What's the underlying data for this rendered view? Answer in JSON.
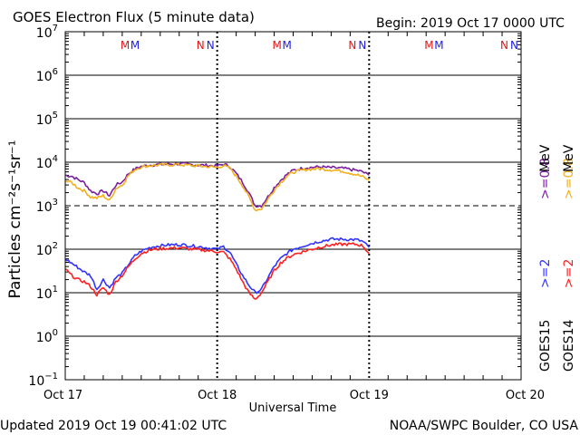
{
  "header": {
    "title": "GOES Electron Flux (5 minute data)",
    "begin": "Begin: 2019 Oct 17 0000 UTC"
  },
  "footer": {
    "updated": "Updated 2019 Oct 19 00:41:02 UTC",
    "source": "NOAA/SWPC Boulder, CO USA"
  },
  "colors": {
    "goes15_2mev": "#3333ff",
    "goes15_08mev": "#7a1fa0",
    "goes14_2mev": "#ff2020",
    "goes14_08mev": "#f0b020",
    "grid": "#000000"
  },
  "chart_data": {
    "type": "line",
    "title": "GOES Electron Flux (5 minute data)",
    "xlabel": "Universal Time",
    "ylabel": "Particles cm⁻²s⁻¹sr⁻¹",
    "yscale": "log",
    "ylim": [
      0.1,
      10000000
    ],
    "xlim": [
      0,
      72
    ],
    "x_unit": "hours since 2019 Oct 17 0000 UTC",
    "x_ticks": [
      {
        "value": 0,
        "label": "Oct 17"
      },
      {
        "value": 24,
        "label": "Oct 18"
      },
      {
        "value": 48,
        "label": "Oct 19"
      },
      {
        "value": 72,
        "label": "Oct 20"
      }
    ],
    "y_ticks": [
      {
        "value": 0.1,
        "base": "10",
        "exp": "−1"
      },
      {
        "value": 1,
        "base": "10",
        "exp": "0"
      },
      {
        "value": 10,
        "base": "10",
        "exp": "1"
      },
      {
        "value": 100,
        "base": "10",
        "exp": "2"
      },
      {
        "value": 1000,
        "base": "10",
        "exp": "3"
      },
      {
        "value": 10000,
        "base": "10",
        "exp": "4"
      },
      {
        "value": 100000,
        "base": "10",
        "exp": "5"
      },
      {
        "value": 1000000,
        "base": "10",
        "exp": "6"
      },
      {
        "value": 10000000,
        "base": "10",
        "exp": "7"
      }
    ],
    "threshold": {
      "value": 1000,
      "style": "dashed"
    },
    "day_markers": [
      {
        "day": "Oct 17",
        "m_hour": 10.0,
        "n_hour": 22.0
      },
      {
        "day": "Oct 18",
        "m_hour": 34.0,
        "n_hour": 46.0
      },
      {
        "day": "Oct 19",
        "m_hour": 58.0,
        "n_hour": 70.0
      }
    ],
    "marker_labels": {
      "m": "M",
      "n": "N"
    },
    "legend": {
      "placement": "right, vertical",
      "goes15": {
        "sat": "GOES15",
        "e2": ">=2",
        "e08": ">=0.8",
        "unit": "MeV"
      },
      "goes14": {
        "sat": "GOES14",
        "e2": ">=2",
        "e08": ">=0.8",
        "unit": "MeV"
      }
    },
    "series": [
      {
        "name": "GOES15 >=0.8 MeV",
        "color": "#7a1fa0",
        "x": [
          0,
          1,
          2,
          3,
          4,
          5,
          6,
          7,
          8,
          9,
          10,
          11,
          12,
          13,
          14,
          16,
          18,
          20,
          22,
          24,
          25,
          26,
          27,
          28,
          29,
          30,
          31,
          32,
          33,
          34,
          35,
          36,
          38,
          40,
          42,
          44,
          46,
          47,
          48
        ],
        "y": [
          5000,
          4800,
          4000,
          3400,
          2200,
          1900,
          2200,
          1700,
          3000,
          3500,
          5500,
          7000,
          8000,
          8500,
          8700,
          9000,
          9200,
          8800,
          8500,
          8200,
          9000,
          8000,
          5500,
          3500,
          2000,
          1000,
          1000,
          1600,
          2600,
          3800,
          5200,
          6500,
          7500,
          7800,
          7500,
          7200,
          6500,
          6000,
          5000
        ]
      },
      {
        "name": "GOES14 >=0.8 MeV",
        "color": "#f0b020",
        "x": [
          0,
          1,
          2,
          3,
          4,
          5,
          6,
          7,
          8,
          9,
          10,
          11,
          12,
          13,
          14,
          16,
          18,
          20,
          22,
          24,
          25,
          26,
          27,
          28,
          29,
          30,
          31,
          32,
          33,
          34,
          35,
          36,
          38,
          40,
          42,
          44,
          46,
          47,
          48
        ],
        "y": [
          3800,
          3400,
          2600,
          2200,
          1600,
          1500,
          1700,
          1300,
          2500,
          3000,
          5000,
          6800,
          7800,
          8300,
          8500,
          8700,
          8800,
          8400,
          8000,
          7600,
          8400,
          7200,
          4800,
          2900,
          1600,
          800,
          850,
          1400,
          2300,
          3400,
          4700,
          5900,
          6800,
          7100,
          6700,
          6200,
          5200,
          4600,
          3800
        ]
      },
      {
        "name": "GOES15 >=2 MeV",
        "color": "#3333ff",
        "x": [
          0,
          1,
          2,
          3,
          4,
          5,
          6,
          7,
          8,
          9,
          10,
          11,
          12,
          13,
          14,
          16,
          18,
          20,
          22,
          24,
          25,
          26,
          27,
          28,
          29,
          30,
          31,
          32,
          33,
          34,
          35,
          36,
          38,
          40,
          42,
          44,
          46,
          47,
          48
        ],
        "y": [
          60,
          48,
          38,
          30,
          25,
          12,
          20,
          13,
          22,
          28,
          45,
          70,
          90,
          105,
          115,
          125,
          128,
          120,
          110,
          100,
          115,
          85,
          45,
          25,
          15,
          10,
          12,
          22,
          40,
          60,
          80,
          100,
          125,
          150,
          170,
          170,
          165,
          150,
          110
        ]
      },
      {
        "name": "GOES14 >=2 MeV",
        "color": "#ff2020",
        "x": [
          0,
          1,
          2,
          3,
          4,
          5,
          6,
          7,
          8,
          9,
          10,
          11,
          12,
          13,
          14,
          16,
          18,
          20,
          22,
          24,
          25,
          26,
          27,
          28,
          29,
          30,
          31,
          32,
          33,
          34,
          35,
          36,
          38,
          40,
          42,
          44,
          46,
          47,
          48
        ],
        "y": [
          35,
          25,
          20,
          18,
          14,
          9,
          13,
          9,
          18,
          25,
          40,
          60,
          80,
          92,
          100,
          105,
          108,
          100,
          95,
          88,
          85,
          60,
          35,
          18,
          10,
          7,
          10,
          18,
          32,
          48,
          62,
          75,
          92,
          110,
          125,
          130,
          130,
          120,
          80
        ]
      }
    ]
  }
}
